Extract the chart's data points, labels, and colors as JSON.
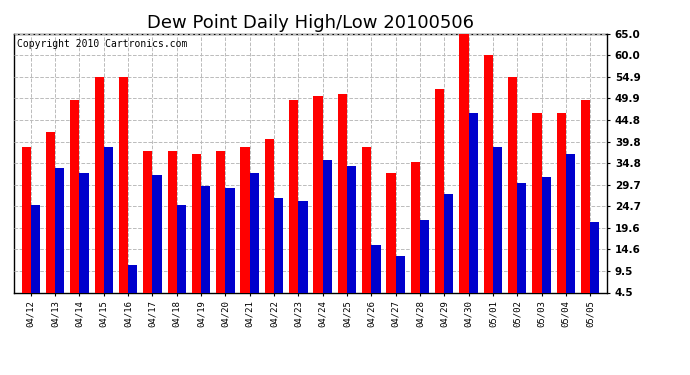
{
  "title": "Dew Point Daily High/Low 20100506",
  "copyright": "Copyright 2010 Cartronics.com",
  "dates": [
    "04/12",
    "04/13",
    "04/14",
    "04/15",
    "04/16",
    "04/17",
    "04/18",
    "04/19",
    "04/20",
    "04/21",
    "04/22",
    "04/23",
    "04/24",
    "04/25",
    "04/26",
    "04/27",
    "04/28",
    "04/29",
    "04/30",
    "05/01",
    "05/02",
    "05/03",
    "05/04",
    "05/05"
  ],
  "highs": [
    38.5,
    42.0,
    49.5,
    55.0,
    55.0,
    37.5,
    37.5,
    37.0,
    37.5,
    38.5,
    40.5,
    49.5,
    50.5,
    51.0,
    38.5,
    32.5,
    35.0,
    52.0,
    65.0,
    60.0,
    55.0,
    46.5,
    46.5,
    49.5
  ],
  "lows": [
    25.0,
    33.5,
    32.5,
    38.5,
    11.0,
    32.0,
    25.0,
    29.5,
    29.0,
    32.5,
    26.5,
    26.0,
    35.5,
    34.0,
    15.5,
    13.0,
    21.5,
    27.5,
    46.5,
    38.5,
    30.0,
    31.5,
    37.0,
    21.0
  ],
  "high_color": "#ff0000",
  "low_color": "#0000cc",
  "bg_color": "#ffffff",
  "grid_color": "#bbbbbb",
  "ylim_min": 4.5,
  "ylim_max": 65.0,
  "yticks": [
    4.5,
    9.5,
    14.6,
    19.6,
    24.7,
    29.7,
    34.8,
    39.8,
    44.8,
    49.9,
    54.9,
    60.0,
    65.0
  ],
  "title_fontsize": 13,
  "copyright_fontsize": 7,
  "bar_width": 0.38
}
